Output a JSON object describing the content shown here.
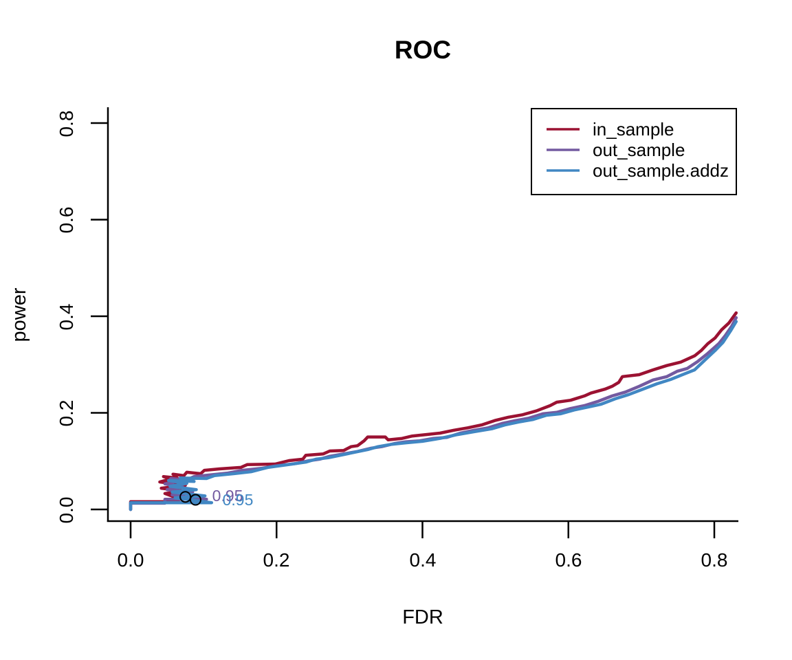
{
  "title": "ROC",
  "axes": {
    "x_label": "FDR",
    "y_label": "power",
    "x_ticks": [
      "0.0",
      "0.2",
      "0.4",
      "0.6",
      "0.8"
    ],
    "x_tick_values": [
      0,
      0.2,
      0.4,
      0.6,
      0.8
    ],
    "y_ticks": [
      "0.0",
      "0.2",
      "0.4",
      "0.6",
      "0.8"
    ],
    "y_tick_values": [
      0,
      0.2,
      0.4,
      0.6,
      0.8
    ]
  },
  "legend": {
    "items": [
      {
        "label": "in_sample",
        "color": "#9B1232"
      },
      {
        "label": "out_sample",
        "color": "#735AA0"
      },
      {
        "label": "out_sample.addz",
        "color": "#4187C3"
      }
    ]
  },
  "colors": {
    "axis": "#000000",
    "background": "#ffffff",
    "marker_stroke": "#000000"
  },
  "chart_data": {
    "type": "line",
    "title": "ROC",
    "xlabel": "FDR",
    "ylabel": "power",
    "xlim": [
      0,
      0.84
    ],
    "ylim": [
      0,
      0.82
    ],
    "grid": false,
    "legend_position": "top-right",
    "series": [
      {
        "name": "in_sample",
        "color": "#9B1232",
        "points": [
          [
            0,
            0
          ],
          [
            0,
            0.016
          ],
          [
            0.061,
            0.016
          ],
          [
            0.068,
            0.021
          ],
          [
            0.047,
            0.033
          ],
          [
            0.073,
            0.038
          ],
          [
            0.042,
            0.044
          ],
          [
            0.075,
            0.05
          ],
          [
            0.04,
            0.057
          ],
          [
            0.055,
            0.063
          ],
          [
            0.045,
            0.068
          ],
          [
            0.064,
            0.065
          ],
          [
            0.058,
            0.073
          ],
          [
            0.073,
            0.07
          ],
          [
            0.077,
            0.077
          ],
          [
            0.096,
            0.074
          ],
          [
            0.101,
            0.081
          ],
          [
            0.122,
            0.084
          ],
          [
            0.151,
            0.087
          ],
          [
            0.16,
            0.093
          ],
          [
            0.198,
            0.094
          ],
          [
            0.217,
            0.101
          ],
          [
            0.236,
            0.104
          ],
          [
            0.24,
            0.112
          ],
          [
            0.264,
            0.115
          ],
          [
            0.273,
            0.121
          ],
          [
            0.292,
            0.122
          ],
          [
            0.302,
            0.13
          ],
          [
            0.311,
            0.132
          ],
          [
            0.32,
            0.142
          ],
          [
            0.325,
            0.15
          ],
          [
            0.349,
            0.15
          ],
          [
            0.353,
            0.144
          ],
          [
            0.372,
            0.147
          ],
          [
            0.386,
            0.152
          ],
          [
            0.405,
            0.155
          ],
          [
            0.424,
            0.158
          ],
          [
            0.443,
            0.164
          ],
          [
            0.462,
            0.169
          ],
          [
            0.481,
            0.175
          ],
          [
            0.499,
            0.184
          ],
          [
            0.518,
            0.191
          ],
          [
            0.537,
            0.196
          ],
          [
            0.556,
            0.204
          ],
          [
            0.575,
            0.215
          ],
          [
            0.584,
            0.222
          ],
          [
            0.603,
            0.226
          ],
          [
            0.622,
            0.235
          ],
          [
            0.631,
            0.241
          ],
          [
            0.65,
            0.249
          ],
          [
            0.66,
            0.255
          ],
          [
            0.669,
            0.263
          ],
          [
            0.674,
            0.275
          ],
          [
            0.697,
            0.279
          ],
          [
            0.716,
            0.289
          ],
          [
            0.735,
            0.298
          ],
          [
            0.754,
            0.305
          ],
          [
            0.773,
            0.318
          ],
          [
            0.782,
            0.329
          ],
          [
            0.791,
            0.343
          ],
          [
            0.801,
            0.355
          ],
          [
            0.81,
            0.372
          ],
          [
            0.82,
            0.386
          ],
          [
            0.83,
            0.407
          ]
        ]
      },
      {
        "name": "out_sample",
        "color": "#735AA0",
        "points": [
          [
            0,
            0
          ],
          [
            0,
            0.013
          ],
          [
            0.047,
            0.013
          ],
          [
            0.047,
            0.021
          ],
          [
            0.104,
            0.021
          ],
          [
            0.057,
            0.03
          ],
          [
            0.085,
            0.036
          ],
          [
            0.05,
            0.041
          ],
          [
            0.071,
            0.047
          ],
          [
            0.047,
            0.053
          ],
          [
            0.064,
            0.058
          ],
          [
            0.055,
            0.064
          ],
          [
            0.077,
            0.061
          ],
          [
            0.087,
            0.068
          ],
          [
            0.106,
            0.071
          ],
          [
            0.132,
            0.075
          ],
          [
            0.153,
            0.081
          ],
          [
            0.179,
            0.085
          ],
          [
            0.198,
            0.09
          ],
          [
            0.226,
            0.095
          ],
          [
            0.245,
            0.101
          ],
          [
            0.259,
            0.104
          ],
          [
            0.273,
            0.11
          ],
          [
            0.292,
            0.115
          ],
          [
            0.311,
            0.12
          ],
          [
            0.33,
            0.127
          ],
          [
            0.344,
            0.13
          ],
          [
            0.363,
            0.137
          ],
          [
            0.377,
            0.14
          ],
          [
            0.396,
            0.142
          ],
          [
            0.415,
            0.147
          ],
          [
            0.433,
            0.149
          ],
          [
            0.452,
            0.158
          ],
          [
            0.471,
            0.164
          ],
          [
            0.49,
            0.169
          ],
          [
            0.509,
            0.178
          ],
          [
            0.528,
            0.184
          ],
          [
            0.546,
            0.189
          ],
          [
            0.565,
            0.198
          ],
          [
            0.584,
            0.201
          ],
          [
            0.603,
            0.209
          ],
          [
            0.622,
            0.215
          ],
          [
            0.641,
            0.224
          ],
          [
            0.66,
            0.235
          ],
          [
            0.678,
            0.243
          ],
          [
            0.697,
            0.255
          ],
          [
            0.716,
            0.268
          ],
          [
            0.735,
            0.275
          ],
          [
            0.749,
            0.286
          ],
          [
            0.763,
            0.292
          ],
          [
            0.777,
            0.306
          ],
          [
            0.791,
            0.323
          ],
          [
            0.806,
            0.343
          ],
          [
            0.815,
            0.36
          ],
          [
            0.824,
            0.38
          ],
          [
            0.83,
            0.397
          ]
        ]
      },
      {
        "name": "out_sample.addz",
        "color": "#4187C3",
        "points": [
          [
            0,
            0
          ],
          [
            0,
            0.014
          ],
          [
            0.111,
            0.014
          ],
          [
            0.061,
            0.024
          ],
          [
            0.102,
            0.028
          ],
          [
            0.057,
            0.036
          ],
          [
            0.09,
            0.041
          ],
          [
            0.054,
            0.048
          ],
          [
            0.077,
            0.054
          ],
          [
            0.052,
            0.06
          ],
          [
            0.087,
            0.058
          ],
          [
            0.068,
            0.065
          ],
          [
            0.104,
            0.064
          ],
          [
            0.115,
            0.07
          ],
          [
            0.141,
            0.074
          ],
          [
            0.165,
            0.078
          ],
          [
            0.188,
            0.087
          ],
          [
            0.217,
            0.093
          ],
          [
            0.24,
            0.098
          ],
          [
            0.254,
            0.104
          ],
          [
            0.271,
            0.107
          ],
          [
            0.287,
            0.112
          ],
          [
            0.306,
            0.118
          ],
          [
            0.325,
            0.124
          ],
          [
            0.339,
            0.13
          ],
          [
            0.358,
            0.135
          ],
          [
            0.377,
            0.138
          ],
          [
            0.4,
            0.141
          ],
          [
            0.424,
            0.147
          ],
          [
            0.448,
            0.155
          ],
          [
            0.471,
            0.161
          ],
          [
            0.495,
            0.167
          ],
          [
            0.513,
            0.175
          ],
          [
            0.532,
            0.181
          ],
          [
            0.551,
            0.186
          ],
          [
            0.57,
            0.195
          ],
          [
            0.589,
            0.198
          ],
          [
            0.608,
            0.206
          ],
          [
            0.627,
            0.212
          ],
          [
            0.645,
            0.218
          ],
          [
            0.664,
            0.229
          ],
          [
            0.683,
            0.238
          ],
          [
            0.702,
            0.249
          ],
          [
            0.721,
            0.26
          ],
          [
            0.74,
            0.269
          ],
          [
            0.758,
            0.28
          ],
          [
            0.773,
            0.289
          ],
          [
            0.787,
            0.309
          ],
          [
            0.801,
            0.329
          ],
          [
            0.812,
            0.346
          ],
          [
            0.822,
            0.369
          ],
          [
            0.83,
            0.389
          ]
        ]
      }
    ],
    "annotations": {
      "markers": [
        {
          "x": 0.075,
          "y": 0.026,
          "color": "#000000"
        },
        {
          "x": 0.089,
          "y": 0.0199,
          "color": "#000000"
        }
      ],
      "labels": [
        {
          "text": "0.95",
          "x": 0.1329,
          "y": 0.0285,
          "color": "#735AA0"
        },
        {
          "text": "0.95",
          "x": 0.147,
          "y": 0.0199,
          "color": "#4187C3"
        }
      ]
    }
  }
}
